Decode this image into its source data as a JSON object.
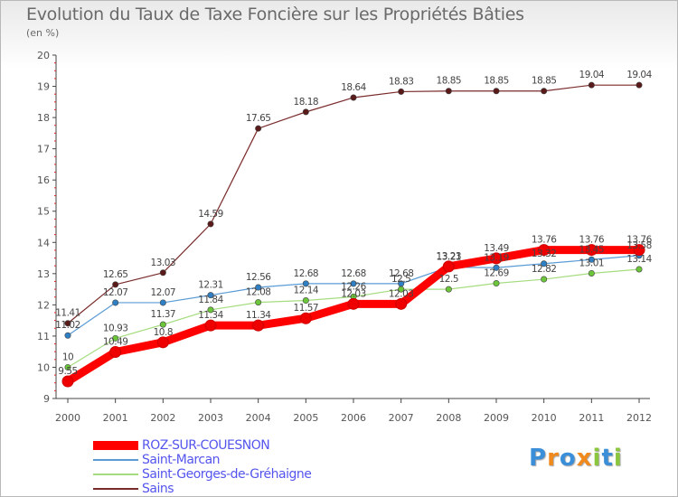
{
  "title": "Evolution du Taux de Taxe Foncière sur les Propriétés Bâties",
  "unit_label": "(en %)",
  "logo": {
    "text": "Proxiti",
    "colors": [
      "#3a8fd8",
      "#f08a1c",
      "#3a8fd8",
      "#f08a1c",
      "#8cc63f",
      "#3a8fd8",
      "#8cc63f"
    ]
  },
  "chart_data": {
    "type": "line",
    "x": [
      "2000",
      "2001",
      "2002",
      "2003",
      "2004",
      "2005",
      "2006",
      "2007",
      "2008",
      "2009",
      "2010",
      "2011",
      "2012"
    ],
    "ylim": [
      9,
      20
    ],
    "yticks": [
      "9",
      "10",
      "11",
      "12",
      "13",
      "14",
      "15",
      "16",
      "17",
      "18",
      "19",
      "20"
    ],
    "grid": false,
    "legend_position": "bottom-left",
    "series": [
      {
        "name": "Sains",
        "color": "#7a2a2a",
        "marker_color": "#5a1a1a",
        "width": 1.2,
        "values": [
          11.41,
          12.65,
          13.03,
          14.59,
          17.65,
          18.18,
          18.64,
          18.83,
          18.85,
          18.85,
          18.85,
          19.04,
          19.04
        ],
        "labels": [
          "11.41",
          "12.65",
          "13.03",
          "14.59",
          "17.65",
          "18.18",
          "18.64",
          "18.83",
          "18.85",
          "18.85",
          "18.85",
          "19.04",
          "19.04"
        ]
      },
      {
        "name": "Saint-Marcan",
        "color": "#5b9bd5",
        "marker_color": "#2f7fc4",
        "width": 1.2,
        "values": [
          11.02,
          12.07,
          12.07,
          12.31,
          12.56,
          12.68,
          12.68,
          12.68,
          13.21,
          13.19,
          13.32,
          13.45,
          13.58
        ],
        "labels": [
          "11.02",
          "12.07",
          "12.07",
          "12.31",
          "12.56",
          "12.68",
          "12.68",
          "12.68",
          "13.21",
          "13.19",
          "13.32",
          "13.45",
          "13.58"
        ]
      },
      {
        "name": "Saint-Georges-de-Gréhaigne",
        "color": "#a6dc80",
        "marker_color": "#6cc63a",
        "width": 1.2,
        "values": [
          10,
          10.93,
          11.37,
          11.84,
          12.08,
          12.14,
          12.26,
          12.5,
          12.5,
          12.69,
          12.82,
          13.01,
          13.14
        ],
        "labels": [
          "10",
          "10.93",
          "11.37",
          "11.84",
          "12.08",
          "12.14",
          "12.26",
          "12.5",
          "12.5",
          "12.69",
          "12.82",
          "13.01",
          "13.14"
        ]
      },
      {
        "name": "ROZ-SUR-COUESNON",
        "color": "#ff0000",
        "marker_color": "#ee0000",
        "width": 9,
        "values": [
          9.55,
          10.49,
          10.8,
          11.34,
          11.34,
          11.57,
          12.03,
          12.03,
          13.23,
          13.49,
          13.76,
          13.76,
          13.76
        ],
        "labels": [
          "9.55",
          "10.49",
          "10.8",
          "11.34",
          "11.34",
          "11.57",
          "12.03",
          "12.03",
          "13.23",
          "13.49",
          "13.76",
          "13.76",
          "13.76"
        ]
      }
    ],
    "legend": [
      "ROZ-SUR-COUESNON",
      "Saint-Marcan",
      "Saint-Georges-de-Gréhaigne",
      "Sains"
    ]
  }
}
